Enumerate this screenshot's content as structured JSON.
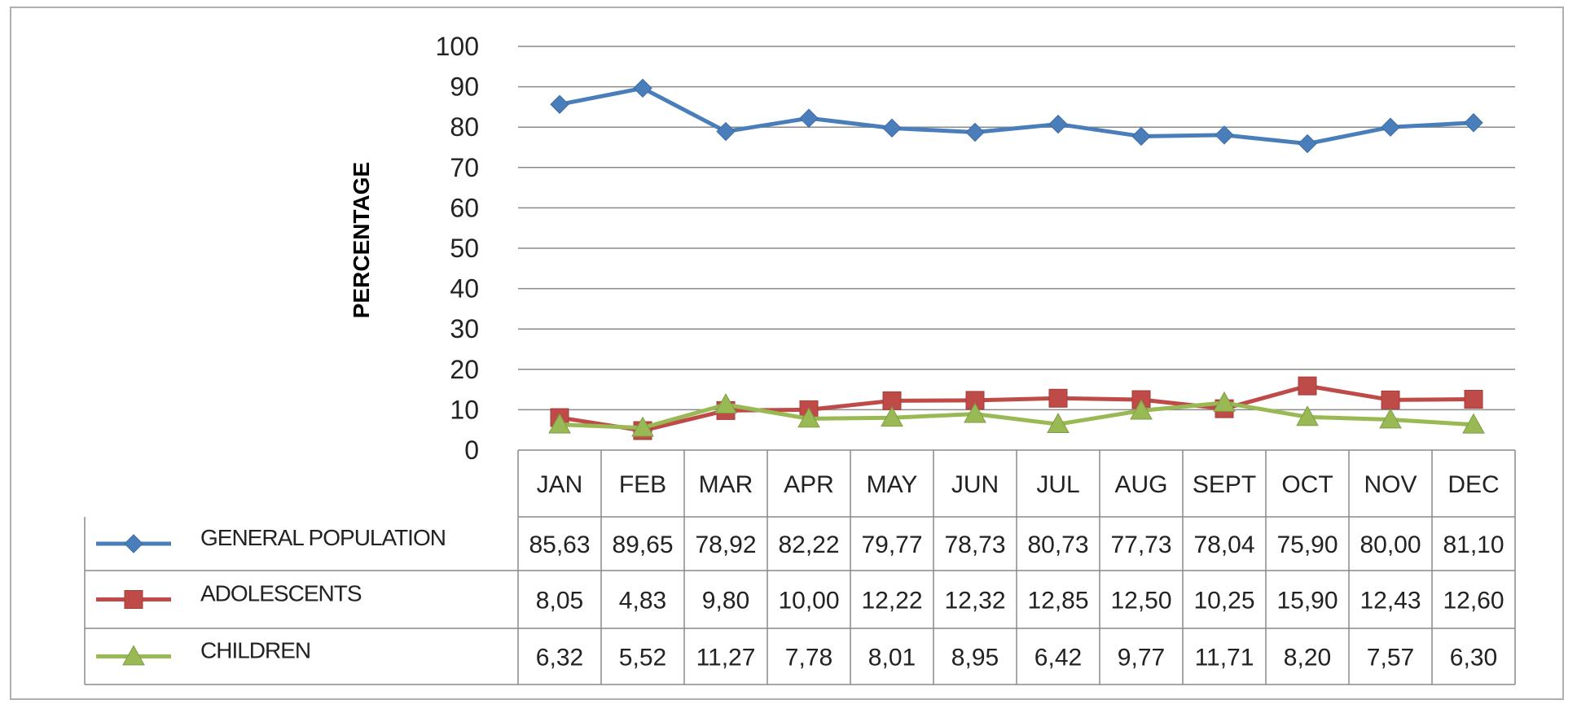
{
  "chart_data": {
    "type": "line",
    "title": "",
    "xlabel": "",
    "ylabel": "PERCENTAGE",
    "ylim": [
      0,
      100
    ],
    "yticks": [
      0,
      10,
      20,
      30,
      40,
      50,
      60,
      70,
      80,
      90,
      100
    ],
    "grid": true,
    "legend": "data table below x-axis",
    "categories": [
      "JAN",
      "FEB",
      "MAR",
      "APR",
      "MAY",
      "JUN",
      "JUL",
      "AUG",
      "SEPT",
      "OCT",
      "NOV",
      "DEC"
    ],
    "series": [
      {
        "name": "GENERAL POPULATION",
        "color": "#4a7ebb",
        "marker": "diamond",
        "values": [
          85.63,
          89.65,
          78.92,
          82.22,
          79.77,
          78.73,
          80.73,
          77.73,
          78.04,
          75.9,
          80.0,
          81.1
        ],
        "labels": [
          "85,63",
          "89,65",
          "78,92",
          "82,22",
          "79,77",
          "78,73",
          "80,73",
          "77,73",
          "78,04",
          "75,90",
          "80,00",
          "81,10"
        ]
      },
      {
        "name": "ADOLESCENTS",
        "color": "#be4b48",
        "marker": "square",
        "values": [
          8.05,
          4.83,
          9.8,
          10.0,
          12.22,
          12.32,
          12.85,
          12.5,
          10.25,
          15.9,
          12.43,
          12.6
        ],
        "labels": [
          "8,05",
          "4,83",
          "9,80",
          "10,00",
          "12,22",
          "12,32",
          "12,85",
          "12,50",
          "10,25",
          "15,90",
          "12,43",
          "12,60"
        ]
      },
      {
        "name": "CHILDREN",
        "color": "#98b954",
        "marker": "triangle",
        "values": [
          6.32,
          5.52,
          11.27,
          7.78,
          8.01,
          8.95,
          6.42,
          9.77,
          11.71,
          8.2,
          7.57,
          6.3
        ],
        "labels": [
          "6,32",
          "5,52",
          "11,27",
          "7,78",
          "8,01",
          "8,95",
          "6,42",
          "9,77",
          "11,71",
          "8,20",
          "7,57",
          "6,30"
        ]
      }
    ]
  }
}
